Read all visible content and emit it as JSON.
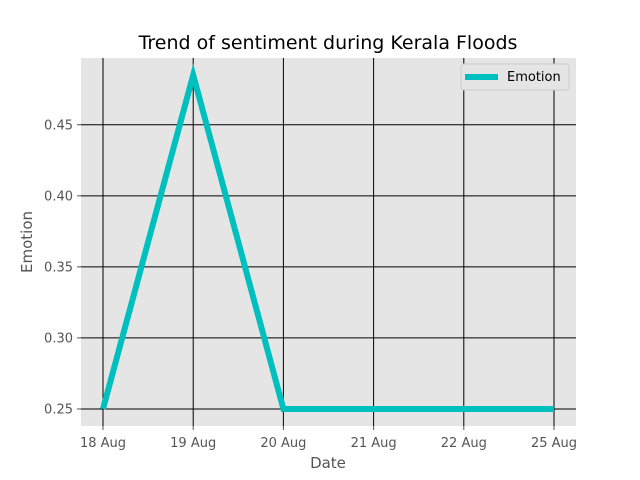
{
  "chart_data": {
    "type": "line",
    "title": "Trend of sentiment during Kerala Floods",
    "xlabel": "Date",
    "ylabel": "Emotion",
    "categories": [
      "18 Aug",
      "19 Aug",
      "20 Aug",
      "21 Aug",
      "22 Aug",
      "25 Aug"
    ],
    "series": [
      {
        "name": "Emotion",
        "values": [
          0.25,
          0.485,
          0.25,
          0.25,
          0.25,
          0.25
        ],
        "color": "#00bfbf"
      }
    ],
    "yticks": [
      0.25,
      0.3,
      0.35,
      0.4,
      0.45
    ],
    "ytick_labels": [
      "0.25",
      "0.30",
      "0.35",
      "0.40",
      "0.45"
    ],
    "ylim": [
      0.238,
      0.497
    ],
    "grid": true,
    "legend": "top-right",
    "background": "#e5e5e5",
    "grid_color": "#000000"
  }
}
